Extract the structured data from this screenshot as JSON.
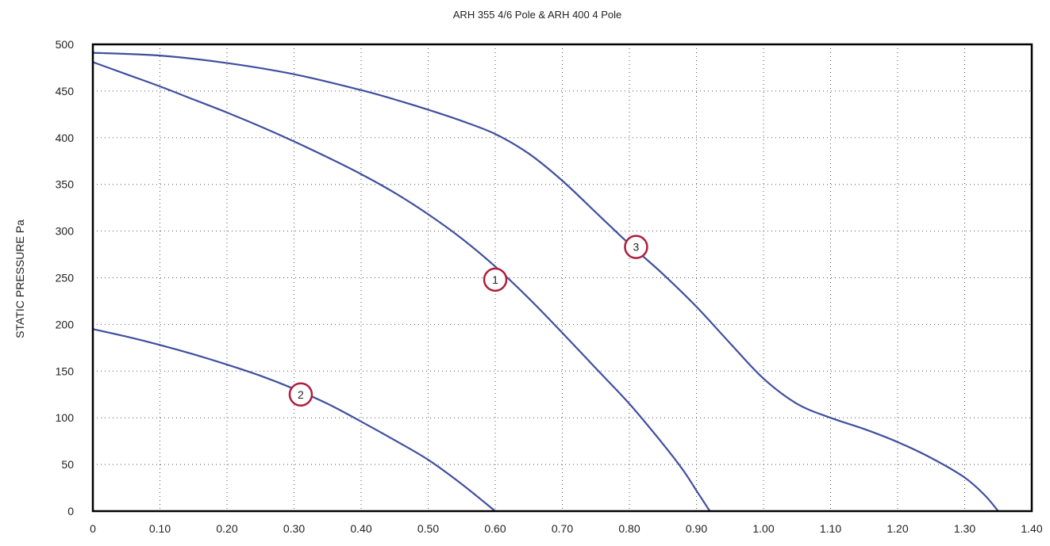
{
  "chart_data": {
    "type": "line",
    "title": "ARH 355 4/6 Pole & ARH 400 4 Pole",
    "xlabel": "",
    "ylabel": "STATIC PRESSURE Pa",
    "xlim": [
      0,
      1.4
    ],
    "ylim": [
      0,
      500
    ],
    "x_ticks": [
      "0",
      "0.10",
      "0.20",
      "0.30",
      "0.40",
      "0.50",
      "0.60",
      "0.70",
      "0.80",
      "0.90",
      "1.00",
      "1.10",
      "1.20",
      "1.30",
      "1.40"
    ],
    "y_ticks": [
      "0",
      "50",
      "100",
      "150",
      "200",
      "250",
      "300",
      "350",
      "400",
      "450",
      "500"
    ],
    "grid": "dotted",
    "line_color": "#3f4f9e",
    "marker_color": "#b01c3c",
    "series": [
      {
        "label": "1",
        "label_at": [
          0.6,
          248
        ],
        "x": [
          0,
          0.05,
          0.1,
          0.15,
          0.2,
          0.25,
          0.3,
          0.35,
          0.4,
          0.45,
          0.5,
          0.55,
          0.6,
          0.65,
          0.7,
          0.75,
          0.8,
          0.85,
          0.88,
          0.9,
          0.92
        ],
        "y": [
          481,
          468,
          455,
          441,
          427,
          412,
          396,
          379,
          361,
          341,
          318,
          292,
          262,
          228,
          191,
          153,
          115,
          72,
          44,
          22,
          0
        ]
      },
      {
        "label": "2",
        "label_at": [
          0.31,
          125
        ],
        "x": [
          0,
          0.05,
          0.1,
          0.15,
          0.2,
          0.25,
          0.3,
          0.35,
          0.4,
          0.45,
          0.5,
          0.55,
          0.6
        ],
        "y": [
          195,
          187,
          178,
          168,
          157,
          145,
          131,
          115,
          96,
          76,
          55,
          29,
          0
        ]
      },
      {
        "label": "3",
        "label_at": [
          0.81,
          283
        ],
        "x": [
          0,
          0.1,
          0.2,
          0.3,
          0.4,
          0.45,
          0.5,
          0.55,
          0.6,
          0.65,
          0.7,
          0.75,
          0.8,
          0.85,
          0.9,
          0.95,
          1.0,
          1.05,
          1.1,
          1.15,
          1.2,
          1.25,
          1.3,
          1.33,
          1.35
        ],
        "y": [
          491,
          488,
          480,
          468,
          451,
          441,
          430,
          418,
          404,
          383,
          354,
          320,
          286,
          254,
          219,
          180,
          142,
          115,
          100,
          88,
          74,
          57,
          36,
          17,
          0
        ]
      }
    ]
  }
}
